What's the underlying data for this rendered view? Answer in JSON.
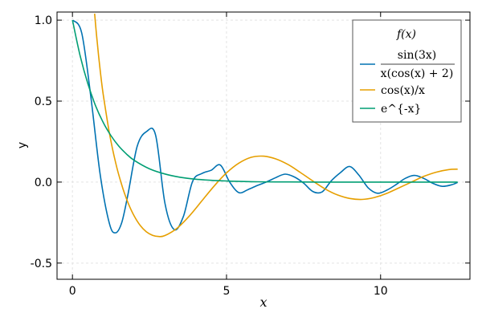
{
  "chart_data": {
    "type": "line",
    "title": "",
    "xlabel": "x",
    "ylabel": "y",
    "xlim": [
      -0.5,
      12.9
    ],
    "ylim": [
      -0.6,
      1.05
    ],
    "grid": true,
    "xticks": [
      {
        "value": 0,
        "label": "0"
      },
      {
        "value": 5,
        "label": "5"
      },
      {
        "value": 10,
        "label": "10"
      }
    ],
    "yticks": [
      {
        "value": -0.5,
        "label": "-0.5"
      },
      {
        "value": 0.0,
        "label": "0.0"
      },
      {
        "value": 0.5,
        "label": "0.5"
      },
      {
        "value": 1.0,
        "label": "1.0"
      }
    ],
    "legend": {
      "title": "f(x)",
      "placement": "top-right",
      "entries": [
        {
          "label": "sin(3x) / x(cos(x) + 2)",
          "label_numerator": "sin(3x)",
          "label_denominator": "x(cos(x) + 2)",
          "color": "#0072B2"
        },
        {
          "label": "cos(x)/x",
          "color": "#E69F00"
        },
        {
          "label": "e^{-x}",
          "color": "#009E73"
        }
      ]
    },
    "series": [
      {
        "color": "#0072B2",
        "x": [
          0.01,
          0.3,
          0.6,
          0.9,
          1.2,
          1.4,
          1.6,
          1.8,
          2.1,
          2.4,
          2.7,
          3.0,
          3.3,
          3.6,
          3.9,
          4.2,
          4.5,
          4.8,
          5.1,
          5.4,
          5.7,
          6.0,
          6.3,
          6.6,
          6.9,
          7.2,
          7.5,
          7.8,
          8.1,
          8.4,
          8.7,
          9.0,
          9.3,
          9.6,
          9.9,
          10.2,
          10.5,
          10.8,
          11.1,
          11.4,
          11.7,
          12.0,
          12.3,
          12.5
        ],
        "y": [
          1.0,
          0.921,
          0.522,
          0.047,
          -0.256,
          -0.313,
          -0.249,
          -0.078,
          0.22,
          0.311,
          0.29,
          -0.13,
          -0.293,
          -0.212,
          0.005,
          0.053,
          0.073,
          0.105,
          0.001,
          -0.065,
          -0.046,
          -0.021,
          0.001,
          0.028,
          0.049,
          0.032,
          -0.006,
          -0.058,
          -0.061,
          0.008,
          0.059,
          0.096,
          0.042,
          -0.036,
          -0.069,
          -0.05,
          -0.016,
          0.023,
          0.041,
          0.023,
          -0.008,
          -0.026,
          -0.017,
          -0.002
        ]
      },
      {
        "color": "#E69F00",
        "x": [
          0.72,
          0.8,
          0.9,
          1.0,
          1.2,
          1.4,
          1.6,
          1.8,
          2.0,
          2.2,
          2.4,
          2.6,
          2.8,
          3.0,
          3.4,
          3.8,
          4.2,
          4.6,
          5.0,
          5.4,
          5.8,
          6.2,
          6.6,
          7.0,
          7.4,
          7.8,
          8.2,
          8.6,
          9.0,
          9.4,
          9.8,
          10.2,
          10.6,
          11.0,
          11.4,
          11.8,
          12.2,
          12.5
        ],
        "y": [
          1.04,
          0.871,
          0.691,
          0.54,
          0.302,
          0.121,
          -0.018,
          -0.126,
          -0.208,
          -0.268,
          -0.307,
          -0.329,
          -0.336,
          -0.33,
          -0.284,
          -0.208,
          -0.116,
          -0.024,
          0.057,
          0.117,
          0.153,
          0.16,
          0.143,
          0.108,
          0.059,
          0.007,
          -0.042,
          -0.079,
          -0.101,
          -0.107,
          -0.095,
          -0.07,
          -0.035,
          0.0,
          0.035,
          0.061,
          0.077,
          0.08
        ]
      },
      {
        "color": "#009E73",
        "x": [
          0,
          0.25,
          0.5,
          0.75,
          1.0,
          1.25,
          1.5,
          1.75,
          2.0,
          2.5,
          3.0,
          3.5,
          4.0,
          4.5,
          5.0,
          6.0,
          7.0,
          8.0,
          9.0,
          10.0,
          11.0,
          12.0,
          12.5
        ],
        "y": [
          1.0,
          0.779,
          0.607,
          0.472,
          0.368,
          0.287,
          0.223,
          0.174,
          0.135,
          0.082,
          0.05,
          0.03,
          0.018,
          0.011,
          0.007,
          0.002,
          0.001,
          0.0,
          0.0,
          0.0,
          0.0,
          0.0,
          0.0
        ]
      }
    ]
  }
}
